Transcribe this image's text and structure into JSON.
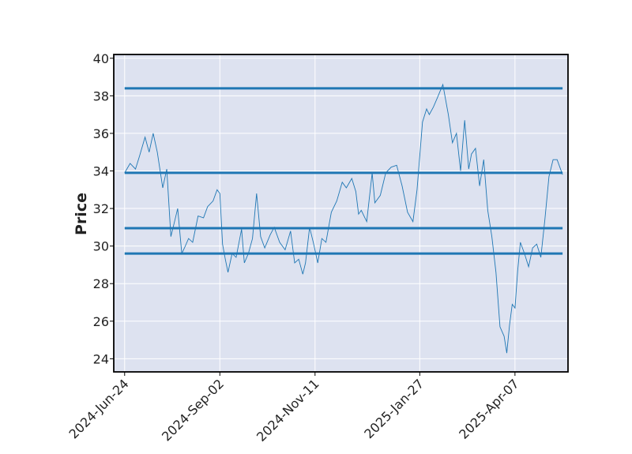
{
  "chart_data": {
    "type": "line",
    "title": "",
    "xlabel": "",
    "ylabel": "Price",
    "ylim": [
      23.3,
      40.2
    ],
    "yticks": [
      24,
      26,
      28,
      30,
      32,
      34,
      36,
      38,
      40
    ],
    "xlim": [
      "2024-06-16",
      "2025-05-16"
    ],
    "xticks": [
      {
        "date": "2024-06-24",
        "label": "2024-Jun-24"
      },
      {
        "date": "2024-09-02",
        "label": "2024-Sep-02"
      },
      {
        "date": "2024-11-11",
        "label": "2024-Nov-11"
      },
      {
        "date": "2025-01-27",
        "label": "2025-Jan-27"
      },
      {
        "date": "2025-04-07",
        "label": "2025-Apr-07"
      }
    ],
    "grid": true,
    "background": "#dde2f0",
    "colors": {
      "line": "#1f77b4",
      "level": "#1f77b4",
      "grid": "#ffffff"
    },
    "levels": [
      38.4,
      33.9,
      30.95,
      29.6
    ],
    "level_span": [
      "2024-06-24",
      "2025-05-12"
    ],
    "series": [
      {
        "x": [
          "2024-06-24",
          "2024-06-28",
          "2024-07-02",
          "2024-07-05",
          "2024-07-09",
          "2024-07-12",
          "2024-07-15",
          "2024-07-18",
          "2024-07-22",
          "2024-07-25",
          "2024-07-28",
          "2024-07-31",
          "2024-08-02",
          "2024-08-05",
          "2024-08-07",
          "2024-08-10",
          "2024-08-13",
          "2024-08-17",
          "2024-08-21",
          "2024-08-24",
          "2024-08-28",
          "2024-08-31",
          "2024-09-02",
          "2024-09-04",
          "2024-09-06",
          "2024-09-08",
          "2024-09-11",
          "2024-09-14",
          "2024-09-18",
          "2024-09-20",
          "2024-09-23",
          "2024-09-26",
          "2024-09-29",
          "2024-10-02",
          "2024-10-05",
          "2024-10-09",
          "2024-10-12",
          "2024-10-16",
          "2024-10-20",
          "2024-10-24",
          "2024-10-27",
          "2024-10-30",
          "2024-11-02",
          "2024-11-04",
          "2024-11-07",
          "2024-11-10",
          "2024-11-13",
          "2024-11-16",
          "2024-11-19",
          "2024-11-23",
          "2024-11-27",
          "2024-12-01",
          "2024-12-04",
          "2024-12-08",
          "2024-12-11",
          "2024-12-13",
          "2024-12-15",
          "2024-12-19",
          "2024-12-23",
          "2024-12-25",
          "2024-12-29",
          "2025-01-02",
          "2025-01-06",
          "2025-01-10",
          "2025-01-14",
          "2025-01-18",
          "2025-01-22",
          "2025-01-25",
          "2025-01-29",
          "2025-02-01",
          "2025-02-03",
          "2025-02-06",
          "2025-02-09",
          "2025-02-13",
          "2025-02-17",
          "2025-02-20",
          "2025-02-23",
          "2025-02-26",
          "2025-03-01",
          "2025-03-04",
          "2025-03-06",
          "2025-03-09",
          "2025-03-12",
          "2025-03-15",
          "2025-03-18",
          "2025-03-21",
          "2025-03-24",
          "2025-03-27",
          "2025-03-30",
          "2025-04-01",
          "2025-04-03",
          "2025-04-05",
          "2025-04-07",
          "2025-04-09",
          "2025-04-11",
          "2025-04-14",
          "2025-04-17",
          "2025-04-20",
          "2025-04-23",
          "2025-04-26",
          "2025-04-29",
          "2025-05-02",
          "2025-05-05",
          "2025-05-08",
          "2025-05-12"
        ],
        "values": [
          33.9,
          34.4,
          34.1,
          34.8,
          35.8,
          35.0,
          36.0,
          35.0,
          33.1,
          34.1,
          30.5,
          31.4,
          32.0,
          29.6,
          29.9,
          30.4,
          30.2,
          31.6,
          31.5,
          32.1,
          32.4,
          33.0,
          32.8,
          30.1,
          29.3,
          28.6,
          29.6,
          29.4,
          30.9,
          29.1,
          29.6,
          30.4,
          32.8,
          30.5,
          29.9,
          30.6,
          31.0,
          30.2,
          29.8,
          30.8,
          29.1,
          29.3,
          28.5,
          29.1,
          31.0,
          30.1,
          29.1,
          30.4,
          30.2,
          31.8,
          32.4,
          33.4,
          33.1,
          33.6,
          32.9,
          31.7,
          31.9,
          31.3,
          33.9,
          32.3,
          32.7,
          33.9,
          34.2,
          34.3,
          33.2,
          31.8,
          31.3,
          33.0,
          36.6,
          37.3,
          37.0,
          37.4,
          37.9,
          38.6,
          37.0,
          35.5,
          36.0,
          34.0,
          36.7,
          34.1,
          34.9,
          35.2,
          33.2,
          34.6,
          31.9,
          30.5,
          28.6,
          25.7,
          25.2,
          24.3,
          25.8,
          26.9,
          26.7,
          28.7,
          30.2,
          29.6,
          28.9,
          29.9,
          30.1,
          29.4,
          31.4,
          33.7,
          34.6,
          34.6,
          33.8
        ]
      }
    ]
  }
}
